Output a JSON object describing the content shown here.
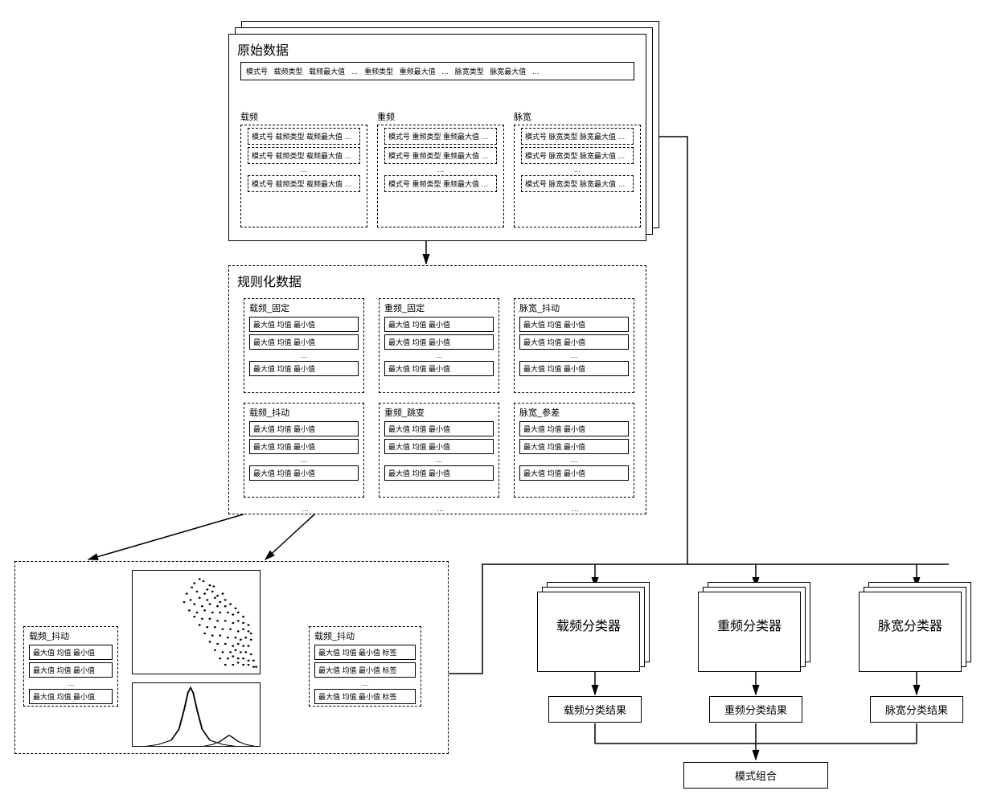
{
  "colors": {
    "bg": "#ffffff",
    "line": "#000000",
    "text": "#000000"
  },
  "raw": {
    "title": "原始数据",
    "header_items": [
      "模式号",
      "载频类型",
      "载频最大值",
      "…",
      "重频类型",
      "重频最大值",
      "…",
      "脉宽类型",
      "脉宽最大值",
      "…"
    ],
    "groups": [
      {
        "label": "载频",
        "row_text": "模式号 载频类型 载频最大值 …"
      },
      {
        "label": "重频",
        "row_text": "模式号 重频类型 重频最大值 …"
      },
      {
        "label": "脉宽",
        "row_text": "模式号 脉宽类型 脉宽最大值 …"
      }
    ]
  },
  "normalized": {
    "title": "规则化数据",
    "row_text": "最大值 均值 最小值",
    "blocks": [
      {
        "label": "载频_固定"
      },
      {
        "label": "重频_固定"
      },
      {
        "label": "脉宽_抖动"
      },
      {
        "label": "载频_抖动"
      },
      {
        "label": "重频_跳变"
      },
      {
        "label": "脉宽_参差"
      }
    ]
  },
  "labeling": {
    "left_block": {
      "label": "载频_抖动",
      "row_text": "最大值 均值 最小值"
    },
    "right_block": {
      "label": "载频_抖动",
      "row_text": "最大值 均值 最小值 标签"
    },
    "scatter": {
      "type": "scatter",
      "xlim": [
        0,
        100
      ],
      "ylim": [
        0,
        100
      ],
      "points": [
        [
          52,
          92
        ],
        [
          48,
          88
        ],
        [
          55,
          90
        ],
        [
          60,
          86
        ],
        [
          46,
          84
        ],
        [
          58,
          82
        ],
        [
          63,
          85
        ],
        [
          50,
          80
        ],
        [
          42,
          78
        ],
        [
          56,
          78
        ],
        [
          62,
          80
        ],
        [
          66,
          76
        ],
        [
          70,
          78
        ],
        [
          45,
          72
        ],
        [
          52,
          74
        ],
        [
          58,
          72
        ],
        [
          64,
          74
        ],
        [
          68,
          70
        ],
        [
          72,
          72
        ],
        [
          40,
          70
        ],
        [
          48,
          68
        ],
        [
          54,
          66
        ],
        [
          60,
          68
        ],
        [
          66,
          66
        ],
        [
          72,
          66
        ],
        [
          76,
          68
        ],
        [
          80,
          64
        ],
        [
          44,
          62
        ],
        [
          50,
          60
        ],
        [
          56,
          62
        ],
        [
          62,
          60
        ],
        [
          68,
          60
        ],
        [
          74,
          60
        ],
        [
          78,
          58
        ],
        [
          82,
          60
        ],
        [
          86,
          56
        ],
        [
          48,
          56
        ],
        [
          54,
          54
        ],
        [
          60,
          54
        ],
        [
          66,
          52
        ],
        [
          72,
          52
        ],
        [
          78,
          50
        ],
        [
          82,
          52
        ],
        [
          86,
          50
        ],
        [
          90,
          48
        ],
        [
          52,
          48
        ],
        [
          58,
          46
        ],
        [
          64,
          46
        ],
        [
          70,
          44
        ],
        [
          76,
          44
        ],
        [
          82,
          42
        ],
        [
          86,
          44
        ],
        [
          90,
          42
        ],
        [
          92,
          40
        ],
        [
          56,
          40
        ],
        [
          62,
          38
        ],
        [
          68,
          38
        ],
        [
          74,
          36
        ],
        [
          80,
          36
        ],
        [
          84,
          34
        ],
        [
          88,
          36
        ],
        [
          92,
          34
        ],
        [
          60,
          32
        ],
        [
          66,
          30
        ],
        [
          72,
          30
        ],
        [
          78,
          28
        ],
        [
          82,
          30
        ],
        [
          86,
          28
        ],
        [
          90,
          28
        ],
        [
          64,
          24
        ],
        [
          70,
          22
        ],
        [
          76,
          22
        ],
        [
          80,
          24
        ],
        [
          84,
          22
        ],
        [
          88,
          22
        ],
        [
          92,
          20
        ],
        [
          68,
          16
        ],
        [
          74,
          16
        ],
        [
          78,
          18
        ],
        [
          82,
          16
        ],
        [
          86,
          16
        ],
        [
          90,
          14
        ],
        [
          94,
          14
        ],
        [
          72,
          10
        ],
        [
          78,
          10
        ],
        [
          82,
          12
        ],
        [
          86,
          10
        ],
        [
          90,
          10
        ],
        [
          94,
          8
        ],
        [
          96,
          8
        ]
      ],
      "point_color": "#000000",
      "background_color": "#ffffff"
    },
    "density": {
      "type": "line",
      "xlim": [
        0,
        100
      ],
      "ylim": [
        0,
        1
      ],
      "path_left": [
        [
          10,
          0.02
        ],
        [
          20,
          0.05
        ],
        [
          30,
          0.12
        ],
        [
          36,
          0.3
        ],
        [
          40,
          0.62
        ],
        [
          43,
          0.9
        ],
        [
          45,
          0.98
        ],
        [
          47,
          0.9
        ],
        [
          50,
          0.62
        ],
        [
          54,
          0.3
        ],
        [
          60,
          0.12
        ],
        [
          70,
          0.05
        ],
        [
          80,
          0.02
        ]
      ],
      "path_right": [
        [
          55,
          0.02
        ],
        [
          62,
          0.05
        ],
        [
          68,
          0.1
        ],
        [
          72,
          0.16
        ],
        [
          75,
          0.2
        ],
        [
          78,
          0.16
        ],
        [
          82,
          0.1
        ],
        [
          88,
          0.05
        ],
        [
          95,
          0.02
        ]
      ],
      "line_color": "#000000",
      "line_width": 1.2,
      "background_color": "#ffffff"
    }
  },
  "classifiers": [
    {
      "name": "载频分类器",
      "result": "载频分类结果"
    },
    {
      "name": "重频分类器",
      "result": "重频分类结果"
    },
    {
      "name": "脉宽分类器",
      "result": "脉宽分类结果"
    }
  ],
  "combine": "模式组合"
}
